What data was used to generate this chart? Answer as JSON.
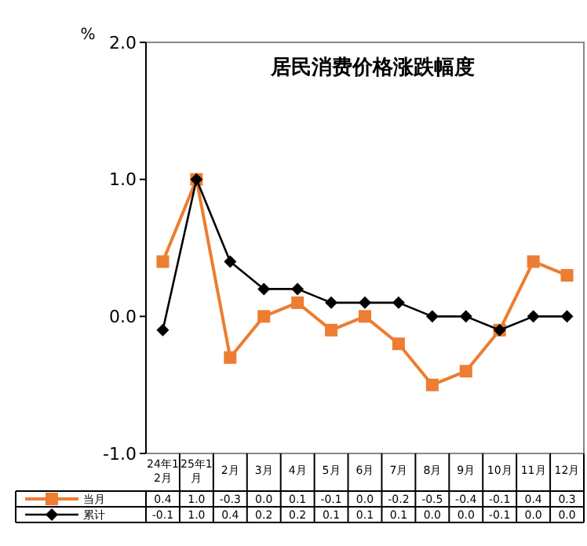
{
  "chart_data": {
    "type": "line",
    "title": "居民消费价格涨跌幅度",
    "ylabel": "%",
    "categories": [
      "24年12月",
      "25年1月",
      "2月",
      "3月",
      "4月",
      "5月",
      "6月",
      "7月",
      "8月",
      "9月",
      "10月",
      "11月",
      "12月"
    ],
    "series": [
      {
        "name": "当月",
        "color": "#ed7d31",
        "marker": "square",
        "values": [
          0.4,
          1.0,
          -0.3,
          0.0,
          0.1,
          -0.1,
          0.0,
          -0.2,
          -0.5,
          -0.4,
          -0.1,
          0.4,
          0.3
        ],
        "value_labels": [
          "0.4",
          "1.0",
          "-0.3",
          "0.0",
          "0.1",
          "-0.1",
          "0.0",
          "-0.2",
          "-0.5",
          "-0.4",
          "-0.1",
          "0.4",
          "0.3"
        ]
      },
      {
        "name": "累计",
        "color": "#000000",
        "marker": "diamond",
        "values": [
          -0.1,
          1.0,
          0.4,
          0.2,
          0.2,
          0.1,
          0.1,
          0.1,
          0.0,
          0.0,
          -0.1,
          0.0,
          0.0
        ],
        "value_labels": [
          "-0.1",
          "1.0",
          "0.4",
          "0.2",
          "0.2",
          "0.1",
          "0.1",
          "0.1",
          "0.0",
          "0.0",
          "-0.1",
          "0.0",
          "0.0"
        ]
      }
    ],
    "ylim": [
      -1.0,
      2.0
    ],
    "yticks": [
      {
        "value": -1,
        "label": "-1.0"
      },
      {
        "value": 0,
        "label": "0.0"
      },
      {
        "value": 1,
        "label": "1.0"
      },
      {
        "value": 2,
        "label": "2.0"
      }
    ],
    "grid": false,
    "legend": "bottom",
    "line_style": "solid"
  }
}
